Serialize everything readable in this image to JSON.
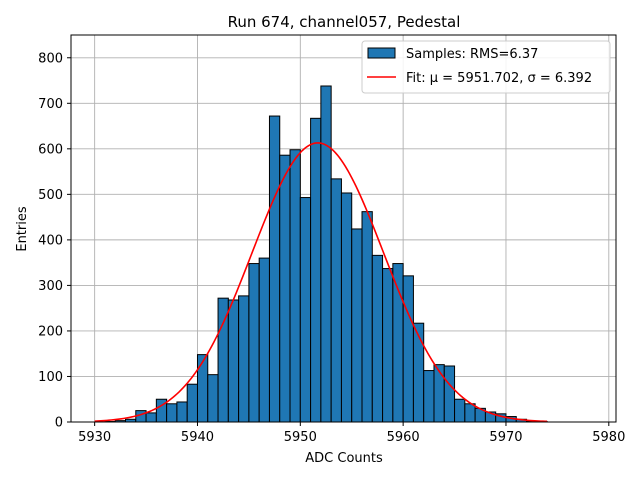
{
  "chart_data": {
    "type": "bar",
    "title": "Run 674, channel057, Pedestal",
    "xlabel": "ADC Counts",
    "ylabel": "Entries",
    "xlim": [
      5927.7,
      5980.7
    ],
    "ylim": [
      0,
      850
    ],
    "xticks": [
      5930,
      5940,
      5950,
      5960,
      5970,
      5980
    ],
    "yticks": [
      0,
      100,
      200,
      300,
      400,
      500,
      600,
      700,
      800
    ],
    "grid": true,
    "legend_position": "top-right",
    "histogram": {
      "name": "Samples: RMS=6.37",
      "color": "#1f77b4",
      "edge_color": "#000000",
      "bin_edges": [
        5930,
        5931,
        5932,
        5933,
        5934,
        5935,
        5936,
        5937,
        5938,
        5939,
        5940,
        5941,
        5942,
        5943,
        5944,
        5945,
        5946,
        5947,
        5948,
        5949,
        5950,
        5951,
        5952,
        5953,
        5954,
        5955,
        5956,
        5957,
        5958,
        5959,
        5960,
        5961,
        5962,
        5963,
        5964,
        5965,
        5966,
        5967,
        5968,
        5969,
        5970,
        5971,
        5972,
        5973,
        5974,
        5975,
        5976,
        5977,
        5978,
        5979
      ],
      "counts": [
        0,
        1,
        3,
        6,
        25,
        20,
        50,
        40,
        44,
        83,
        148,
        104,
        272,
        268,
        277,
        348,
        360,
        672,
        586,
        598,
        493,
        667,
        738,
        534,
        503,
        424,
        462,
        366,
        337,
        348,
        321,
        217,
        113,
        126,
        123,
        50,
        40,
        30,
        22,
        18,
        12,
        6,
        2,
        1,
        0,
        0,
        0,
        0,
        0
      ]
    },
    "fit": {
      "name": "Fit: μ = 5951.702, σ = 6.392",
      "color": "#ff0000",
      "mu": 5951.702,
      "sigma": 6.392,
      "amplitude": 613,
      "x_range": [
        5930,
        5974
      ]
    }
  }
}
